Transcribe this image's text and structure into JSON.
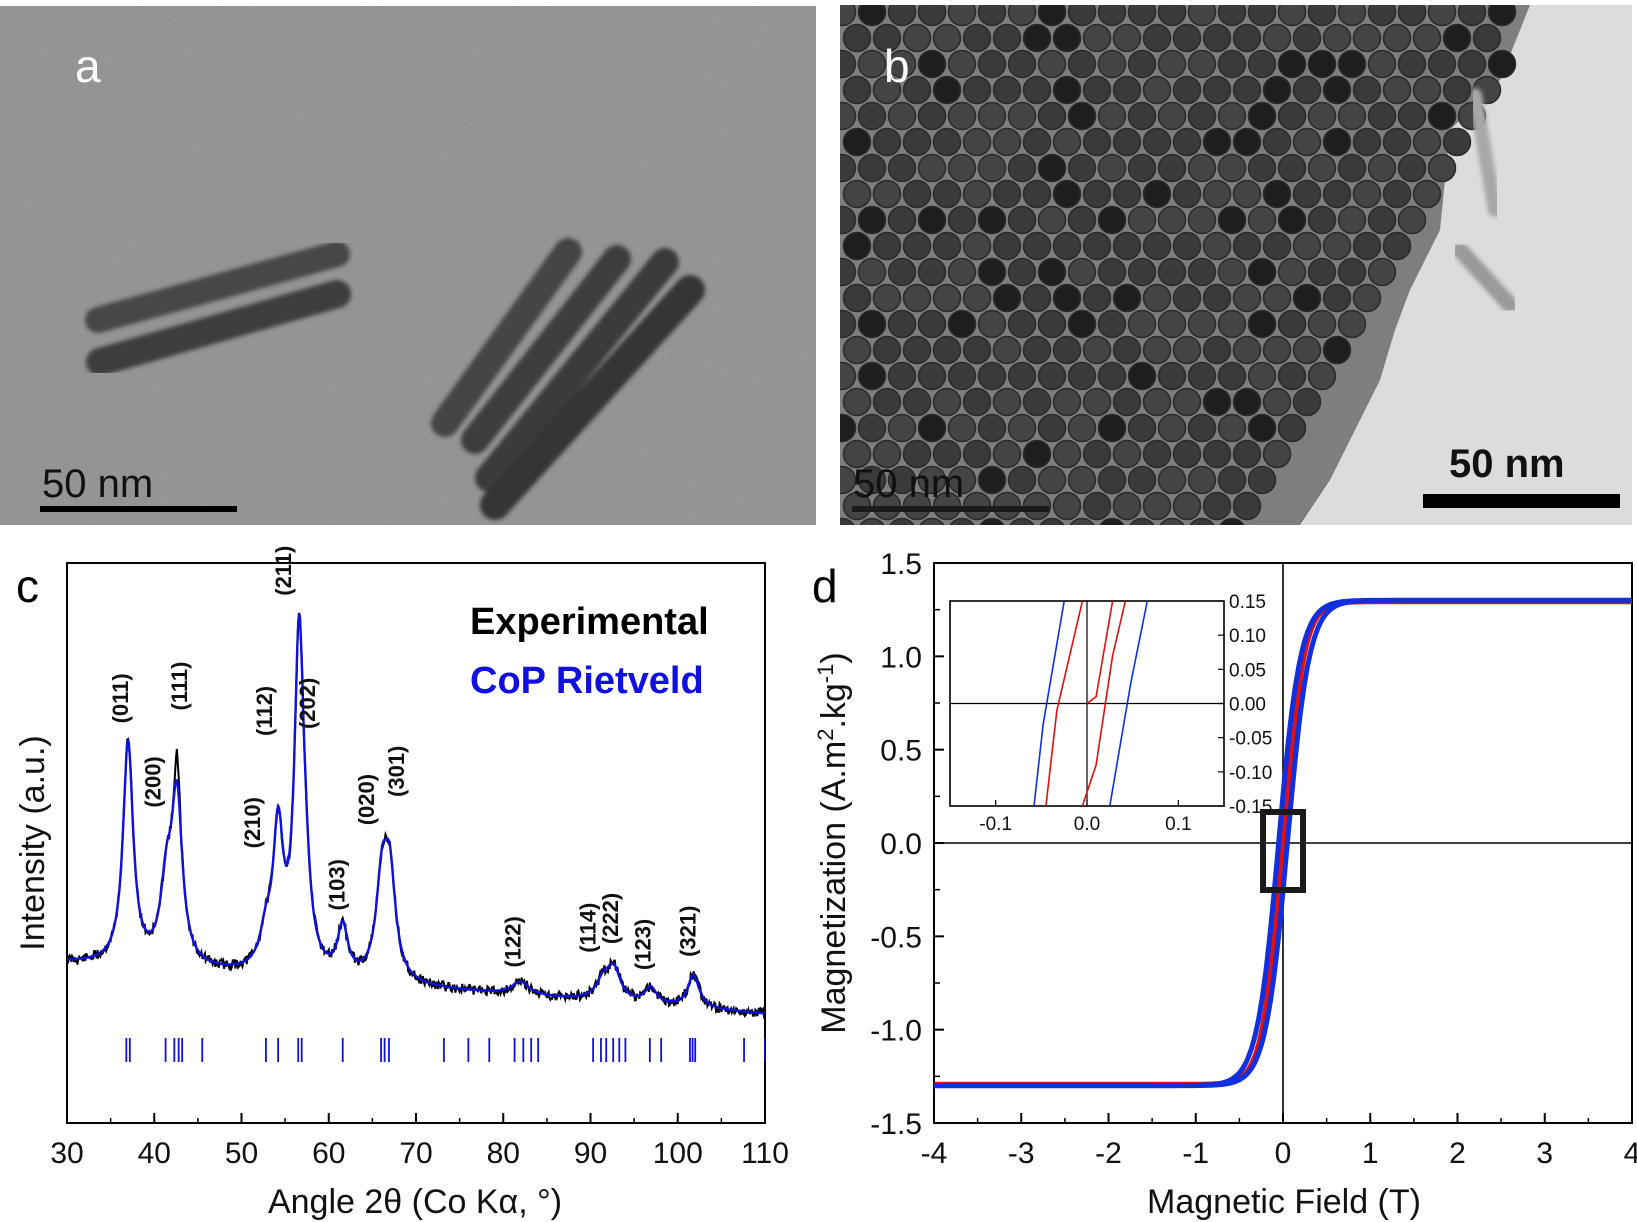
{
  "panels": {
    "a": {
      "letter": "a",
      "scale_bar_label": "50 nm",
      "description_colors": {
        "background": "#8a8a8a",
        "rod": "#3a3a3a"
      }
    },
    "b": {
      "letter": "b",
      "scale_bar_label_faded": "50 nm",
      "scale_bar_label": "50 nm",
      "description_colors": {
        "background": "#7a7a7a",
        "particle": "#2a2a2a",
        "bright": "#d8d8d8"
      }
    },
    "c": {
      "letter": "c"
    },
    "d": {
      "letter": "d"
    }
  },
  "chart_data": [
    {
      "id": "xrd",
      "type": "line",
      "xlabel": "Angle 2θ (Co Kα, °)",
      "ylabel": "Intensity (a.u.)",
      "xlim": [
        30,
        110
      ],
      "xticks": [
        30,
        40,
        50,
        60,
        70,
        80,
        90,
        100,
        110
      ],
      "legend": {
        "placement": "top-right",
        "entries": [
          {
            "name": "Experimental",
            "color": "#000000"
          },
          {
            "name": "CoP Rietveld",
            "color": "#1010e0"
          }
        ]
      },
      "series": [
        {
          "name": "Experimental",
          "color": "#000000"
        },
        {
          "name": "CoP Rietveld",
          "color": "#1010e0"
        }
      ],
      "peaks": [
        {
          "x": 37.0,
          "h": 0.68,
          "w": 0.7,
          "label": "(011)"
        },
        {
          "x": 41.4,
          "h": 0.22,
          "w": 0.8,
          "label": "(200)"
        },
        {
          "x": 42.6,
          "h": 0.5,
          "w": 0.75,
          "label": "(111)"
        },
        {
          "x": 52.8,
          "h": 0.1,
          "w": 0.8,
          "label": "(210)"
        },
        {
          "x": 54.2,
          "h": 0.42,
          "w": 0.7,
          "label": "(112)"
        },
        {
          "x": 56.6,
          "h": 1.0,
          "w": 0.65,
          "label": "(211)"
        },
        {
          "x": 57.3,
          "h": 0.15,
          "w": 0.7,
          "label": "(202)"
        },
        {
          "x": 61.6,
          "h": 0.15,
          "w": 0.7,
          "label": "(103)"
        },
        {
          "x": 66.1,
          "h": 0.28,
          "w": 0.8,
          "label": "(020)"
        },
        {
          "x": 67.0,
          "h": 0.3,
          "w": 0.8,
          "label": "(301)"
        },
        {
          "x": 82.0,
          "h": 0.04,
          "w": 1.2,
          "label": "(122)"
        },
        {
          "x": 91.5,
          "h": 0.06,
          "w": 1.0,
          "label": "(114)"
        },
        {
          "x": 92.7,
          "h": 0.09,
          "w": 0.9,
          "label": "(222)"
        },
        {
          "x": 96.9,
          "h": 0.05,
          "w": 0.8,
          "label": "(123)"
        },
        {
          "x": 101.8,
          "h": 0.1,
          "w": 0.8,
          "label": "(321)"
        }
      ],
      "reflection_ticks": [
        36.8,
        37.2,
        41.3,
        42.3,
        42.8,
        43.2,
        45.5,
        52.8,
        54.2,
        56.5,
        56.9,
        61.6,
        66.0,
        66.4,
        66.9,
        73.2,
        76.0,
        78.4,
        81.3,
        82.3,
        83.2,
        84.0,
        90.3,
        91.2,
        91.8,
        92.6,
        93.3,
        94.0,
        96.8,
        98.1,
        101.4,
        101.7,
        102.0,
        107.6,
        110.0
      ]
    },
    {
      "id": "hysteresis",
      "type": "line",
      "xlabel": "Magnetic Field (T)",
      "ylabel": "Magnetization (A.m²kg⁻¹)",
      "ylabel_parts": {
        "main": "Magnetization (A.m",
        "sup1": "2",
        "mid": ".kg",
        "sup2": "-1",
        "end": ")"
      },
      "xlim": [
        -4,
        4
      ],
      "ylim": [
        -1.5,
        1.5
      ],
      "xticks": [
        -4,
        -3,
        -2,
        -1,
        0,
        1,
        2,
        3,
        4
      ],
      "yticks": [
        -1.5,
        -1.0,
        -0.5,
        0.0,
        0.5,
        1.0,
        1.5
      ],
      "ytick_labels": [
        "-1.5",
        "-1.0",
        "-0.5",
        "0.0",
        "0.5",
        "1.0",
        "1.5"
      ],
      "series": [
        {
          "name": "",
          "color": "#e01010",
          "Ms": 1.29,
          "Hc": 0.02,
          "a": 0.22
        },
        {
          "name": "",
          "color": "#1030e0",
          "Ms": 1.3,
          "Hc": 0.05,
          "a": 0.25
        }
      ],
      "inset": {
        "xlim": [
          -0.15,
          0.15
        ],
        "ylim": [
          -0.15,
          0.15
        ],
        "xticks": [
          -0.1,
          0.0,
          0.1
        ],
        "xtick_labels": [
          "-0.1",
          "0.0",
          "0.1"
        ],
        "yticks": [
          0.15,
          0.1,
          0.05,
          0.0,
          -0.05,
          -0.1,
          -0.15
        ],
        "ytick_labels": [
          "0.15",
          "0.10",
          "0.05",
          "0.00",
          "-0.05",
          "-0.10",
          "-0.15"
        ],
        "lines": [
          {
            "color": "#1030e0",
            "pts": [
              [
                -0.058,
                -0.15
              ],
              [
                -0.048,
                -0.03
              ],
              [
                -0.025,
                0.15
              ]
            ]
          },
          {
            "color": "#1030e0",
            "pts": [
              [
                0.025,
                -0.15
              ],
              [
                0.048,
                0.03
              ],
              [
                0.066,
                0.15
              ]
            ]
          },
          {
            "color": "#e01010",
            "pts": [
              [
                -0.045,
                -0.15
              ],
              [
                -0.033,
                -0.01
              ],
              [
                -0.005,
                0.15
              ]
            ]
          },
          {
            "color": "#e01010",
            "pts": [
              [
                -0.005,
                -0.15
              ],
              [
                0.01,
                -0.09
              ],
              [
                0.028,
                0.07
              ],
              [
                0.042,
                0.15
              ]
            ]
          },
          {
            "color": "#e01010",
            "pts": [
              [
                0.0,
                0.0
              ],
              [
                0.01,
                0.01
              ],
              [
                0.028,
                0.15
              ]
            ]
          }
        ]
      }
    }
  ]
}
